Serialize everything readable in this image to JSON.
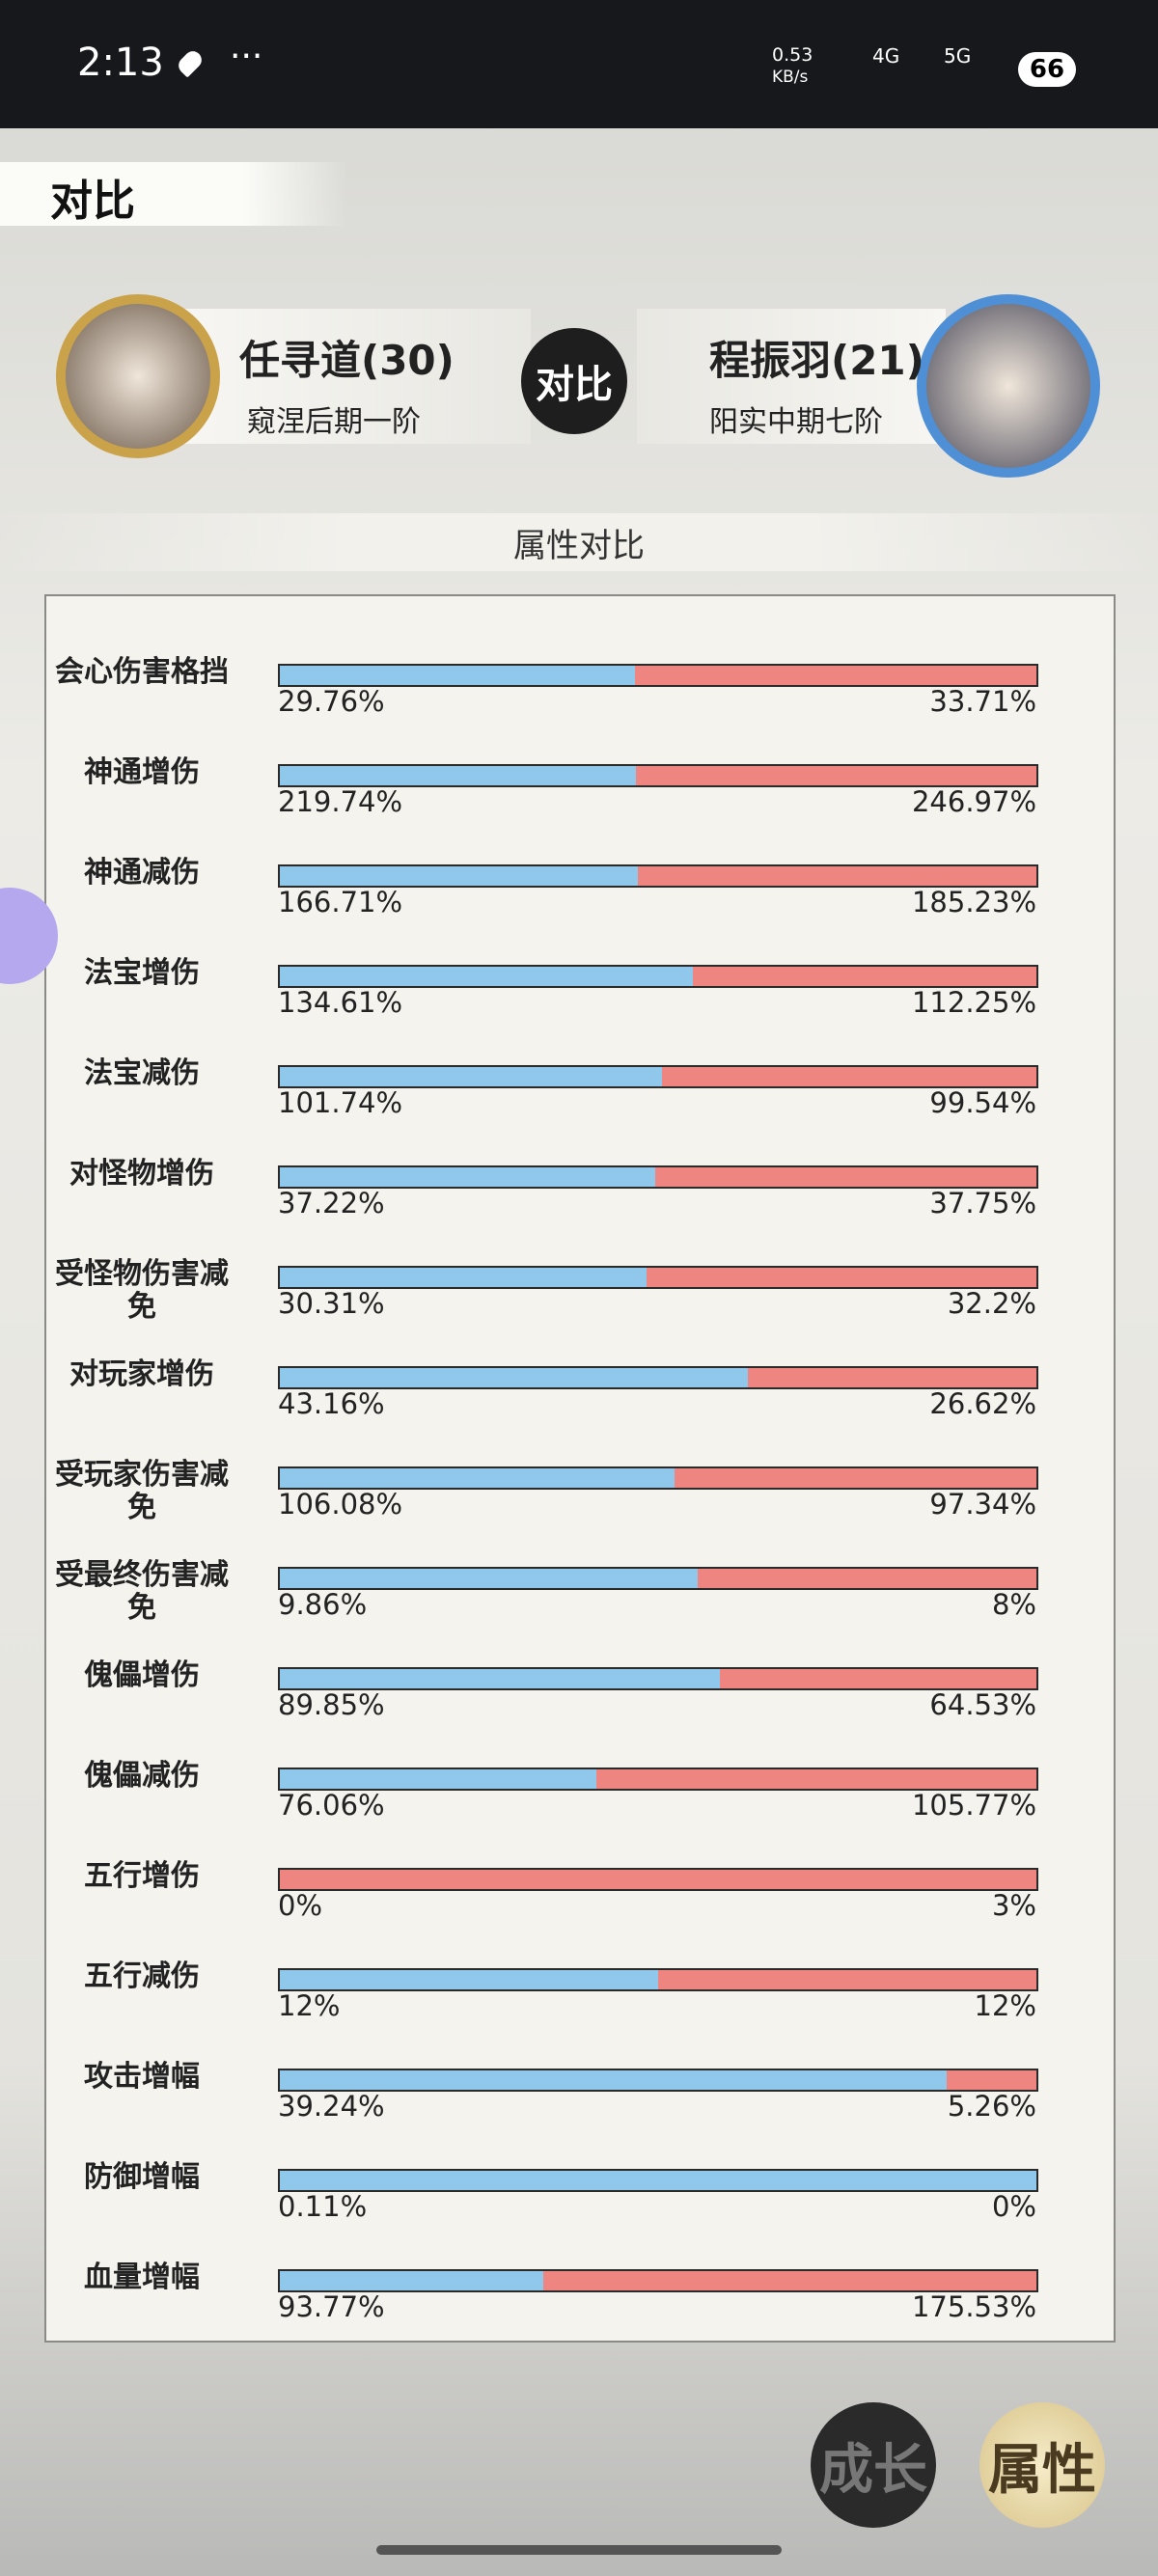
{
  "status_bar": {
    "time": "2:13",
    "speed": "0.53",
    "speed_unit": "KB/s",
    "net1": "4G",
    "net2": "5G",
    "battery": "66"
  },
  "header": {
    "title": "对比"
  },
  "left_player": {
    "name": "任寻道(30)",
    "realm": "窥涅后期一阶"
  },
  "versus": "对比",
  "right_player": {
    "name": "程振羽(21)",
    "realm": "阳实中期七阶"
  },
  "section_title": "属性对比",
  "rows": [
    {
      "label": "会心伤害格挡",
      "left": {
        "value": 29.76,
        "label": "29.76%"
      },
      "right": {
        "value": 33.71,
        "label": "33.71%"
      }
    },
    {
      "label": "神通增伤",
      "left": {
        "value": 219.74,
        "label": "219.74%"
      },
      "right": {
        "value": 246.97,
        "label": "246.97%"
      }
    },
    {
      "label": "神通减伤",
      "left": {
        "value": 166.71,
        "label": "166.71%"
      },
      "right": {
        "value": 185.23,
        "label": "185.23%"
      }
    },
    {
      "label": "法宝增伤",
      "left": {
        "value": 134.61,
        "label": "134.61%"
      },
      "right": {
        "value": 112.25,
        "label": "112.25%"
      }
    },
    {
      "label": "法宝减伤",
      "left": {
        "value": 101.74,
        "label": "101.74%"
      },
      "right": {
        "value": 99.54,
        "label": "99.54%"
      }
    },
    {
      "label": "对怪物增伤",
      "left": {
        "value": 37.22,
        "label": "37.22%"
      },
      "right": {
        "value": 37.75,
        "label": "37.75%"
      }
    },
    {
      "label": "受怪物伤害减免",
      "left": {
        "value": 30.31,
        "label": "30.31%"
      },
      "right": {
        "value": 32.2,
        "label": "32.2%"
      }
    },
    {
      "label": "对玩家增伤",
      "left": {
        "value": 43.16,
        "label": "43.16%"
      },
      "right": {
        "value": 26.62,
        "label": "26.62%"
      }
    },
    {
      "label": "受玩家伤害减免",
      "left": {
        "value": 106.08,
        "label": "106.08%"
      },
      "right": {
        "value": 97.34,
        "label": "97.34%"
      }
    },
    {
      "label": "受最终伤害减免",
      "left": {
        "value": 9.86,
        "label": "9.86%"
      },
      "right": {
        "value": 8,
        "label": "8%"
      }
    },
    {
      "label": "傀儡增伤",
      "left": {
        "value": 89.85,
        "label": "89.85%"
      },
      "right": {
        "value": 64.53,
        "label": "64.53%"
      }
    },
    {
      "label": "傀儡减伤",
      "left": {
        "value": 76.06,
        "label": "76.06%"
      },
      "right": {
        "value": 105.77,
        "label": "105.77%"
      }
    },
    {
      "label": "五行增伤",
      "left": {
        "value": 0,
        "label": "0%"
      },
      "right": {
        "value": 3,
        "label": "3%"
      }
    },
    {
      "label": "五行减伤",
      "left": {
        "value": 12,
        "label": "12%"
      },
      "right": {
        "value": 12,
        "label": "12%"
      }
    },
    {
      "label": "攻击增幅",
      "left": {
        "value": 39.24,
        "label": "39.24%"
      },
      "right": {
        "value": 5.26,
        "label": "5.26%"
      }
    },
    {
      "label": "防御增幅",
      "left": {
        "value": 0.11,
        "label": "0.11%"
      },
      "right": {
        "value": 0,
        "label": "0%"
      }
    },
    {
      "label": "血量增幅",
      "left": {
        "value": 93.77,
        "label": "93.77%"
      },
      "right": {
        "value": 175.53,
        "label": "175.53%"
      }
    }
  ],
  "buttons": [
    "成长",
    "属性"
  ]
}
